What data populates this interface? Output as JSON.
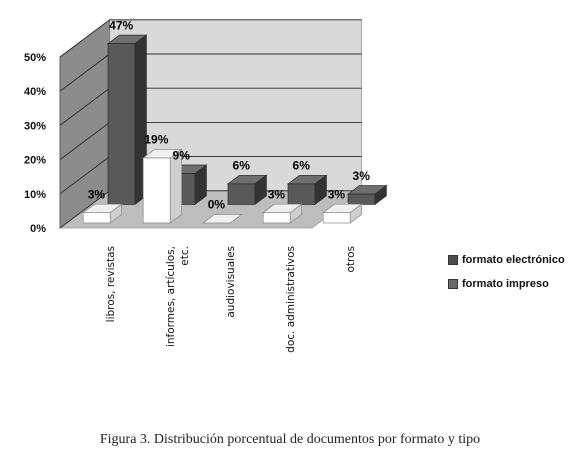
{
  "caption": "Figura 3. Distribución porcentual de documentos por formato y tipo",
  "chart_data": {
    "type": "bar",
    "categories": [
      "libros, revistas",
      "informes, artículos, etc.",
      "audiovisuales",
      "doc. administrativos",
      "otros"
    ],
    "categories_lines": [
      [
        "libros, revistas"
      ],
      [
        "informes, artículos,",
        "etc."
      ],
      [
        "audiovisuales"
      ],
      [
        "doc. administrativos"
      ],
      [
        "otros"
      ]
    ],
    "series": [
      {
        "name": "formato electrónico",
        "values": [
          47,
          9,
          6,
          6,
          3
        ],
        "labels": [
          "47%",
          "9%",
          "6%",
          "6%",
          "3%"
        ],
        "color": "#4d4d4d"
      },
      {
        "name": "formato impreso",
        "values": [
          3,
          19,
          0,
          3,
          3
        ],
        "labels": [
          "3%",
          "19%",
          "0%",
          "3%",
          "3%"
        ],
        "color": "#ffffff"
      }
    ],
    "y_ticks": [
      "0%",
      "10%",
      "20%",
      "30%",
      "40%",
      "50%"
    ],
    "ylim": [
      0,
      50
    ],
    "grid": true,
    "legend_position": "right",
    "three_d": true
  }
}
